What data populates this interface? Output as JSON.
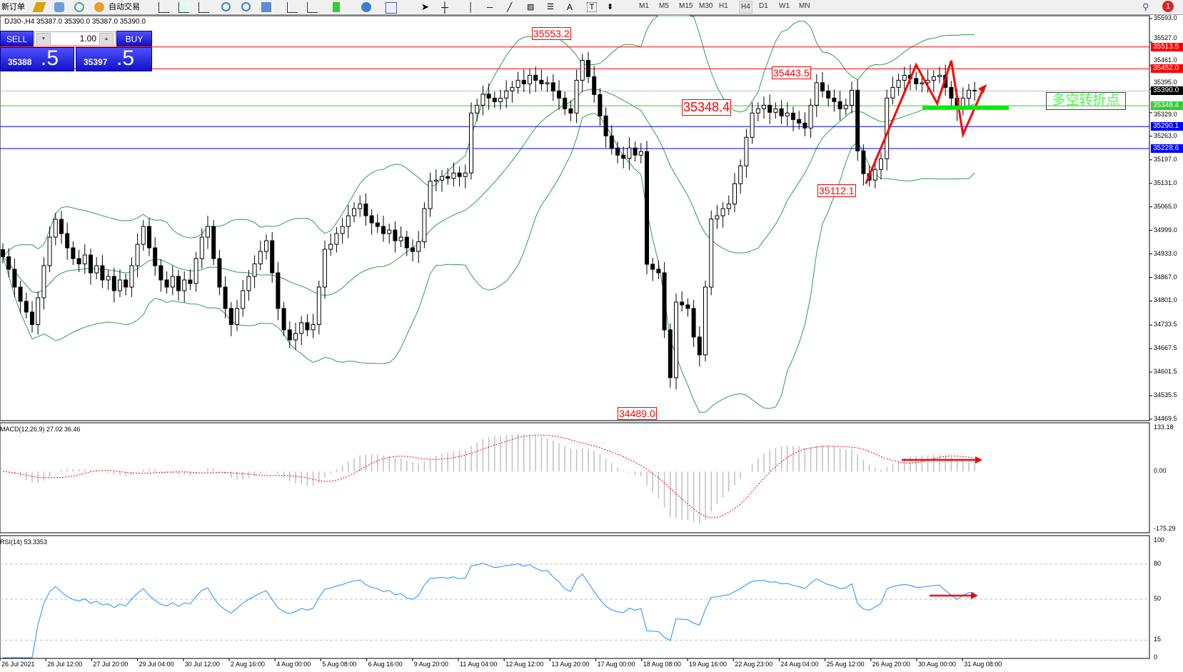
{
  "toolbar": {
    "new_order": "新订单",
    "auto_trading": "自动交易",
    "timeframes": [
      "M1",
      "M5",
      "M15",
      "M30",
      "H1",
      "H4",
      "D1",
      "W1",
      "MN"
    ],
    "active_timeframe": "H4",
    "notification_count": "1"
  },
  "chart_header": "DJ30-,H4  35387.0 35390.0 35387.0 35390.0",
  "trade_panel": {
    "sell_label": "SELL",
    "buy_label": "BUY",
    "lot": "1.00",
    "sell_price_main": "35388",
    "sell_price_big": ".5",
    "buy_price_main": "35397",
    "buy_price_big": ".5"
  },
  "annotations": {
    "high_label": "35553.2",
    "mid_high_label": "35443.5",
    "pivot_label": "35348.4",
    "recent_low_label": "35112.1",
    "low_label": "34489.0",
    "note": "多空转折点"
  },
  "colors": {
    "bollinger": "#2e9e4f",
    "resistance": "#ff0000",
    "support": "#0000ff",
    "pivot": "#33cc33",
    "macd_hist": "#c0c0c0",
    "macd_signal": "#ff0000",
    "rsi": "#1e90ff",
    "drawing": "#ff0000",
    "pivot_bar": "#00ee00"
  },
  "chart_data": [
    {
      "type": "candlestick",
      "symbol": "DJ30-",
      "timeframe": "H4",
      "ylim": [
        34469.5,
        35593.0
      ],
      "y_ticks": [
        "35593.0",
        "35527.0",
        "35461.0",
        "35395.0",
        "35329.0",
        "35263.0",
        "35197.0",
        "35131.0",
        "35065.0",
        "34999.0",
        "34933.0",
        "34867.0",
        "34801.0",
        "34733.5",
        "34667.5",
        "34601.5",
        "34535.5",
        "34469.5"
      ],
      "x_ticks": [
        "26 Jul 2021",
        "26 Jul 12:00",
        "27 Jul 20:00",
        "29 Jul 04:00",
        "30 Jul 12:00",
        "2 Aug 16:00",
        "4 Aug 00:00",
        "5 Aug 08:00",
        "6 Aug 16:00",
        "9 Aug 20:00",
        "11 Aug 04:00",
        "12 Aug 12:00",
        "13 Aug 20:00",
        "17 Aug 00:00",
        "18 Aug 08:00",
        "19 Aug 16:00",
        "22 Aug 23:00",
        "24 Aug 04:00",
        "25 Aug 12:00",
        "26 Aug 20:00",
        "30 Aug 00:00",
        "31 Aug 08:00"
      ],
      "closes": [
        34925,
        34890,
        34840,
        34800,
        34770,
        34735,
        34810,
        34900,
        34980,
        35030,
        34990,
        34950,
        34920,
        34905,
        34930,
        34880,
        34900,
        34860,
        34870,
        34830,
        34860,
        34840,
        34900,
        34960,
        35010,
        34950,
        34900,
        34860,
        34840,
        34870,
        34830,
        34860,
        34850,
        34920,
        34980,
        35010,
        34920,
        34840,
        34780,
        34735,
        34780,
        34830,
        34870,
        34905,
        34940,
        34970,
        34880,
        34780,
        34720,
        34692,
        34710,
        34740,
        34720,
        34735,
        34840,
        34946,
        34960,
        34990,
        35010,
        35040,
        35060,
        35073,
        35040,
        35020,
        35010,
        34990,
        35000,
        34970,
        34980,
        34950,
        34940,
        34967,
        35060,
        35137,
        35140,
        35150,
        35145,
        35160,
        35150,
        35160,
        35328,
        35350,
        35381,
        35370,
        35360,
        35370,
        35390,
        35400,
        35420,
        35410,
        35434,
        35420,
        35410,
        35413,
        35390,
        35370,
        35340,
        35328,
        35420,
        35476,
        35430,
        35380,
        35320,
        35264,
        35230,
        35210,
        35201,
        35230,
        35210,
        35220,
        34904,
        34890,
        34880,
        34720,
        34586,
        34798,
        34790,
        34780,
        34700,
        34650,
        34840,
        35031,
        35040,
        35060,
        35073,
        35130,
        35180,
        35260,
        35328,
        35340,
        35350,
        35330,
        35340,
        35320,
        35328,
        35310,
        35300,
        35286,
        35350,
        35413,
        35390,
        35370,
        35360,
        35340,
        35350,
        35392,
        35222,
        35158,
        35140,
        35170,
        35200,
        35370,
        35400,
        35420,
        35434,
        35425,
        35410,
        35413,
        35420,
        35430,
        35434,
        35400,
        35370,
        35339,
        35370,
        35392,
        35390
      ],
      "indicators": [
        "Bollinger Bands"
      ],
      "horizontal_lines": [
        {
          "price": 35513.5,
          "label": "35513.5",
          "color": "#ff0000"
        },
        {
          "price": 35452.0,
          "label": "35452.0",
          "color": "#ff0000"
        },
        {
          "price": 35390.0,
          "label": "35390.0",
          "color": "#c0c0c0",
          "tag_color": "#000000"
        },
        {
          "price": 35348.4,
          "label": "35348.4",
          "color": "#33cc33"
        },
        {
          "price": 35290.1,
          "label": "35290.1",
          "color": "#0000ff"
        },
        {
          "price": 35228.6,
          "label": "35228.6",
          "color": "#0000ff"
        }
      ],
      "marked_prices": [
        35553.2,
        35443.5,
        35348.4,
        35112.1,
        34489.0
      ]
    },
    {
      "type": "bar+line",
      "title": "MACD(12,26,9) 27.02 36.46",
      "ylim": [
        -175.29,
        133.18
      ],
      "y_ticks": [
        "133.18",
        "0.00",
        "-175.29"
      ]
    },
    {
      "type": "line",
      "title": "RSI(14) 53.3353",
      "ylim": [
        0,
        100
      ],
      "levels": [
        80,
        50,
        15
      ],
      "y_ticks": [
        "100",
        "80",
        "50",
        "15",
        "0"
      ]
    }
  ]
}
